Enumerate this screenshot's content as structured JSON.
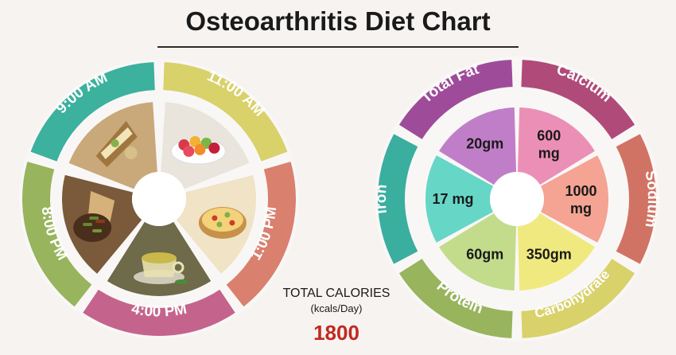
{
  "title": "Osteoarthritis Diet Chart",
  "meal_schedule": [
    {
      "time": "9:00 AM",
      "food": "sandwich-icon",
      "color": "#3bb19e"
    },
    {
      "time": "11:00 AM",
      "food": "fruit-bowl-icon",
      "color": "#d9d16a"
    },
    {
      "time": "1:00 PM",
      "food": "rice-bowl-icon",
      "color": "#d9806e"
    },
    {
      "time": "4:00 PM",
      "food": "green-tea-icon",
      "color": "#c4648d"
    },
    {
      "time": "8:00 PM",
      "food": "curry-bread-icon",
      "color": "#98b45c"
    }
  ],
  "totals": {
    "label": "TOTAL CALORIES",
    "unit": "(kcals/Day)",
    "value": "1800"
  },
  "nutrients": [
    {
      "name": "Total Fat",
      "value": "20gm",
      "outer": "#9e4c9a",
      "inner": "#c17ec8"
    },
    {
      "name": "Calcium",
      "value": "600 mg",
      "outer": "#b04a79",
      "inner": "#ec8fb6"
    },
    {
      "name": "Sodium",
      "value": "1000 mg",
      "outer": "#d17364",
      "inner": "#f5a392"
    },
    {
      "name": "Carbohydrate",
      "value": "350gm",
      "outer": "#d9d16a",
      "inner": "#f0e97f"
    },
    {
      "name": "Protein",
      "value": "60gm",
      "outer": "#98b45c",
      "inner": "#c3dc8c"
    },
    {
      "name": "Iron",
      "value": "17 mg",
      "outer": "#3aae9f",
      "inner": "#66d6c7"
    }
  ]
}
